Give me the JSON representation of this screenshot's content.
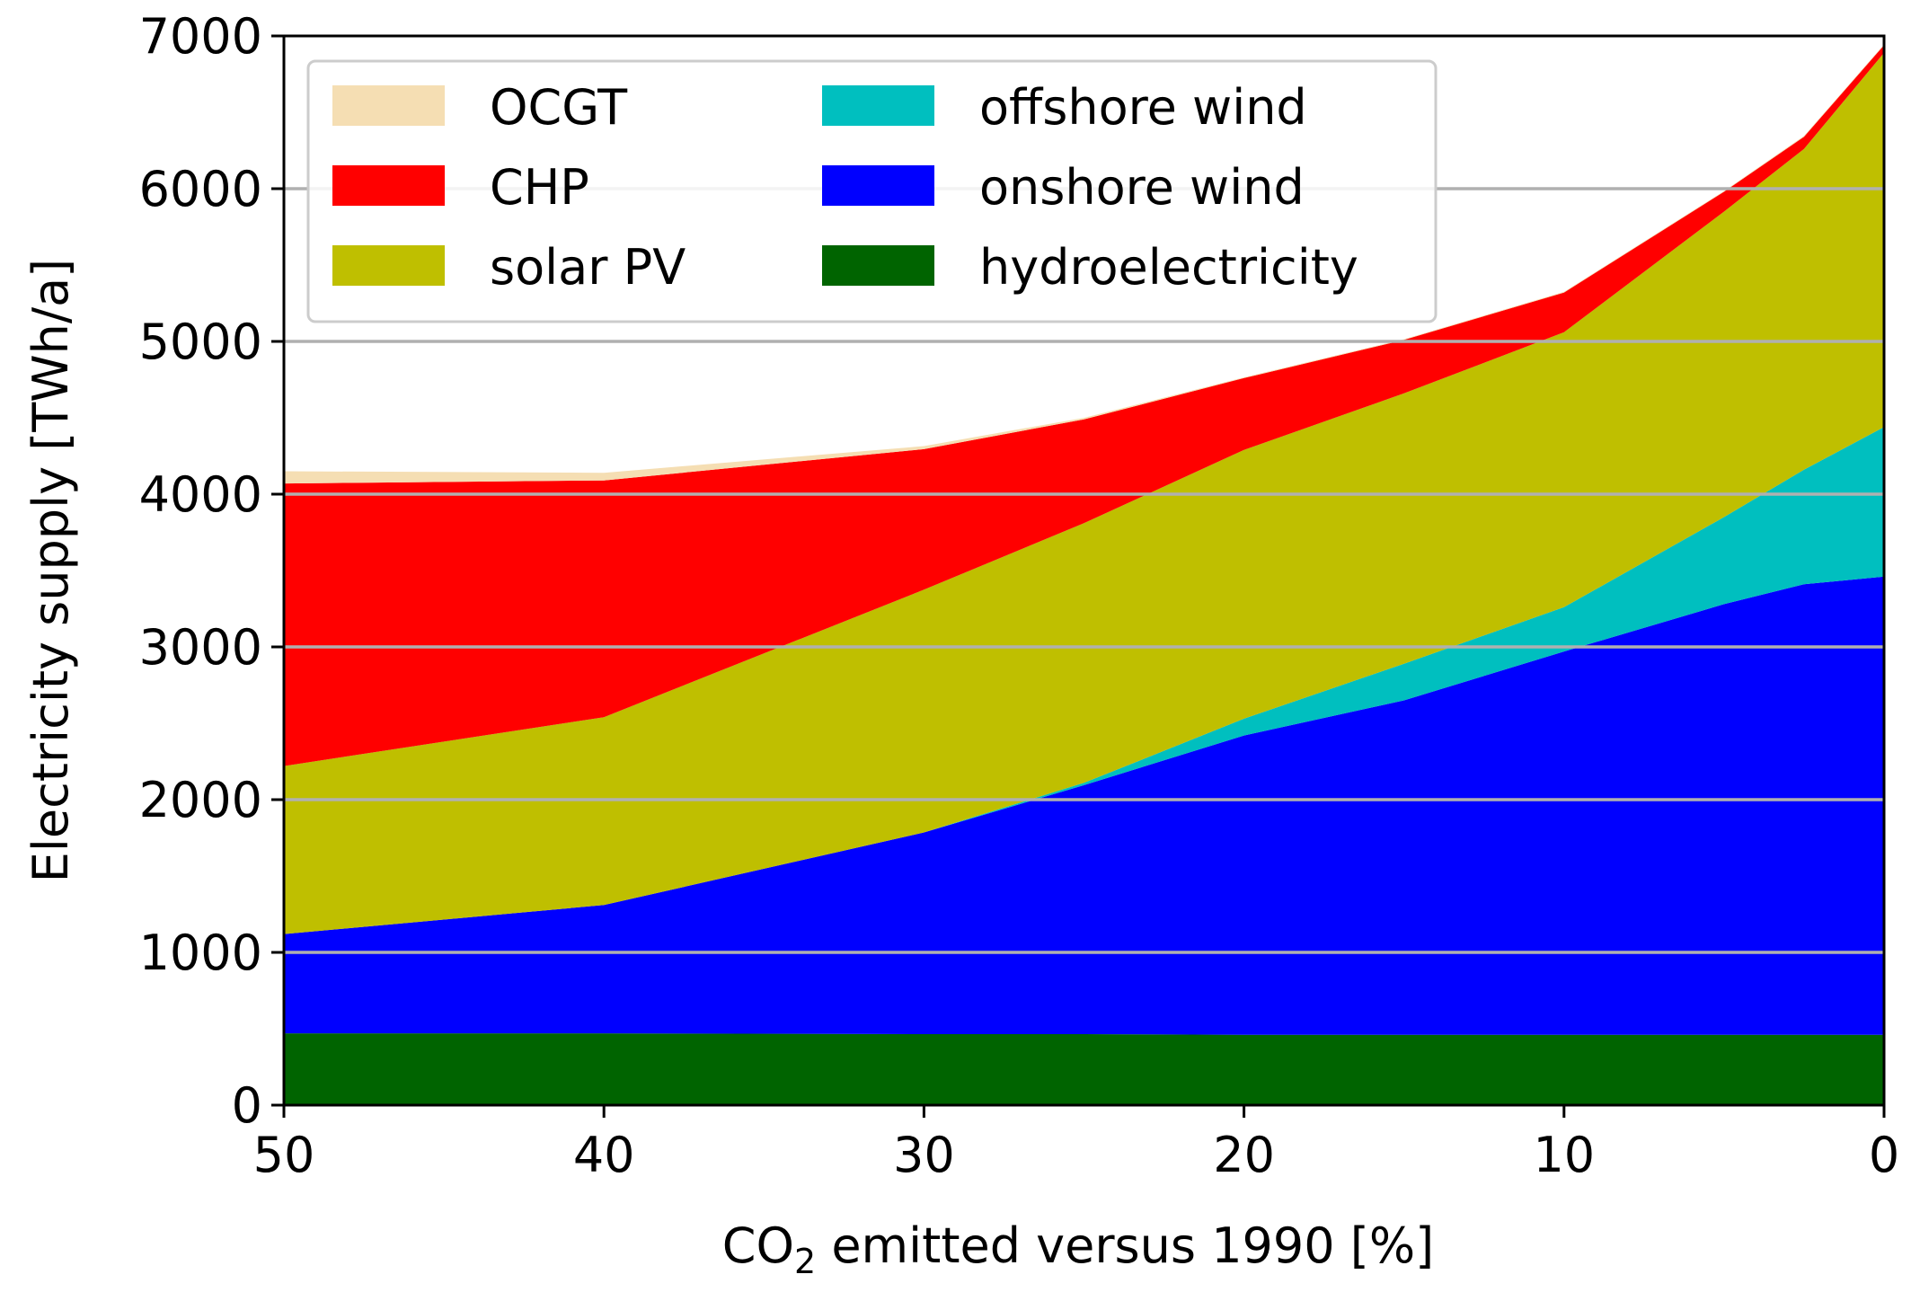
{
  "chart_data": {
    "type": "area",
    "stacked": true,
    "x": [
      50,
      40,
      30,
      25,
      20,
      15,
      10,
      5,
      2.5,
      0
    ],
    "xlim": [
      50,
      0
    ],
    "xticks": [
      "50",
      "40",
      "30",
      "20",
      "10",
      "0"
    ],
    "ylim": [
      0,
      7000
    ],
    "yticks": [
      "0",
      "1000",
      "2000",
      "3000",
      "4000",
      "5000",
      "6000",
      "7000"
    ],
    "xlabel_main": "CO",
    "xlabel_sub": "2",
    "xlabel_rest": " emitted versus 1990 [%]",
    "ylabel": "Electricity supply [TWh/a]",
    "grid": "horizontal",
    "legend_position": "upper-left",
    "series": [
      {
        "name": "hydroelectricity",
        "color": "#006400",
        "values": [
          470,
          470,
          465,
          465,
          460,
          460,
          460,
          460,
          460,
          460
        ]
      },
      {
        "name": "onshore wind",
        "color": "#0000ff",
        "values": [
          650,
          840,
          1320,
          1630,
          1960,
          2190,
          2510,
          2820,
          2950,
          3000
        ]
      },
      {
        "name": "offshore wind",
        "color": "#00bfbf",
        "values": [
          0,
          0,
          0,
          15,
          110,
          240,
          290,
          570,
          750,
          980
        ]
      },
      {
        "name": "solar PV",
        "color": "#bfbf00",
        "values": [
          1100,
          1230,
          1590,
          1700,
          1760,
          1770,
          1800,
          2000,
          2100,
          2450
        ]
      },
      {
        "name": "CHP",
        "color": "#ff0000",
        "values": [
          1850,
          1550,
          920,
          680,
          470,
          350,
          260,
          130,
          80,
          50
        ]
      },
      {
        "name": "OCGT",
        "color": "#f5deb3",
        "values": [
          80,
          50,
          20,
          10,
          5,
          5,
          5,
          5,
          5,
          5
        ]
      }
    ],
    "legend_order": [
      "OCGT",
      "CHP",
      "solar PV",
      "offshore wind",
      "onshore wind",
      "hydroelectricity"
    ]
  }
}
